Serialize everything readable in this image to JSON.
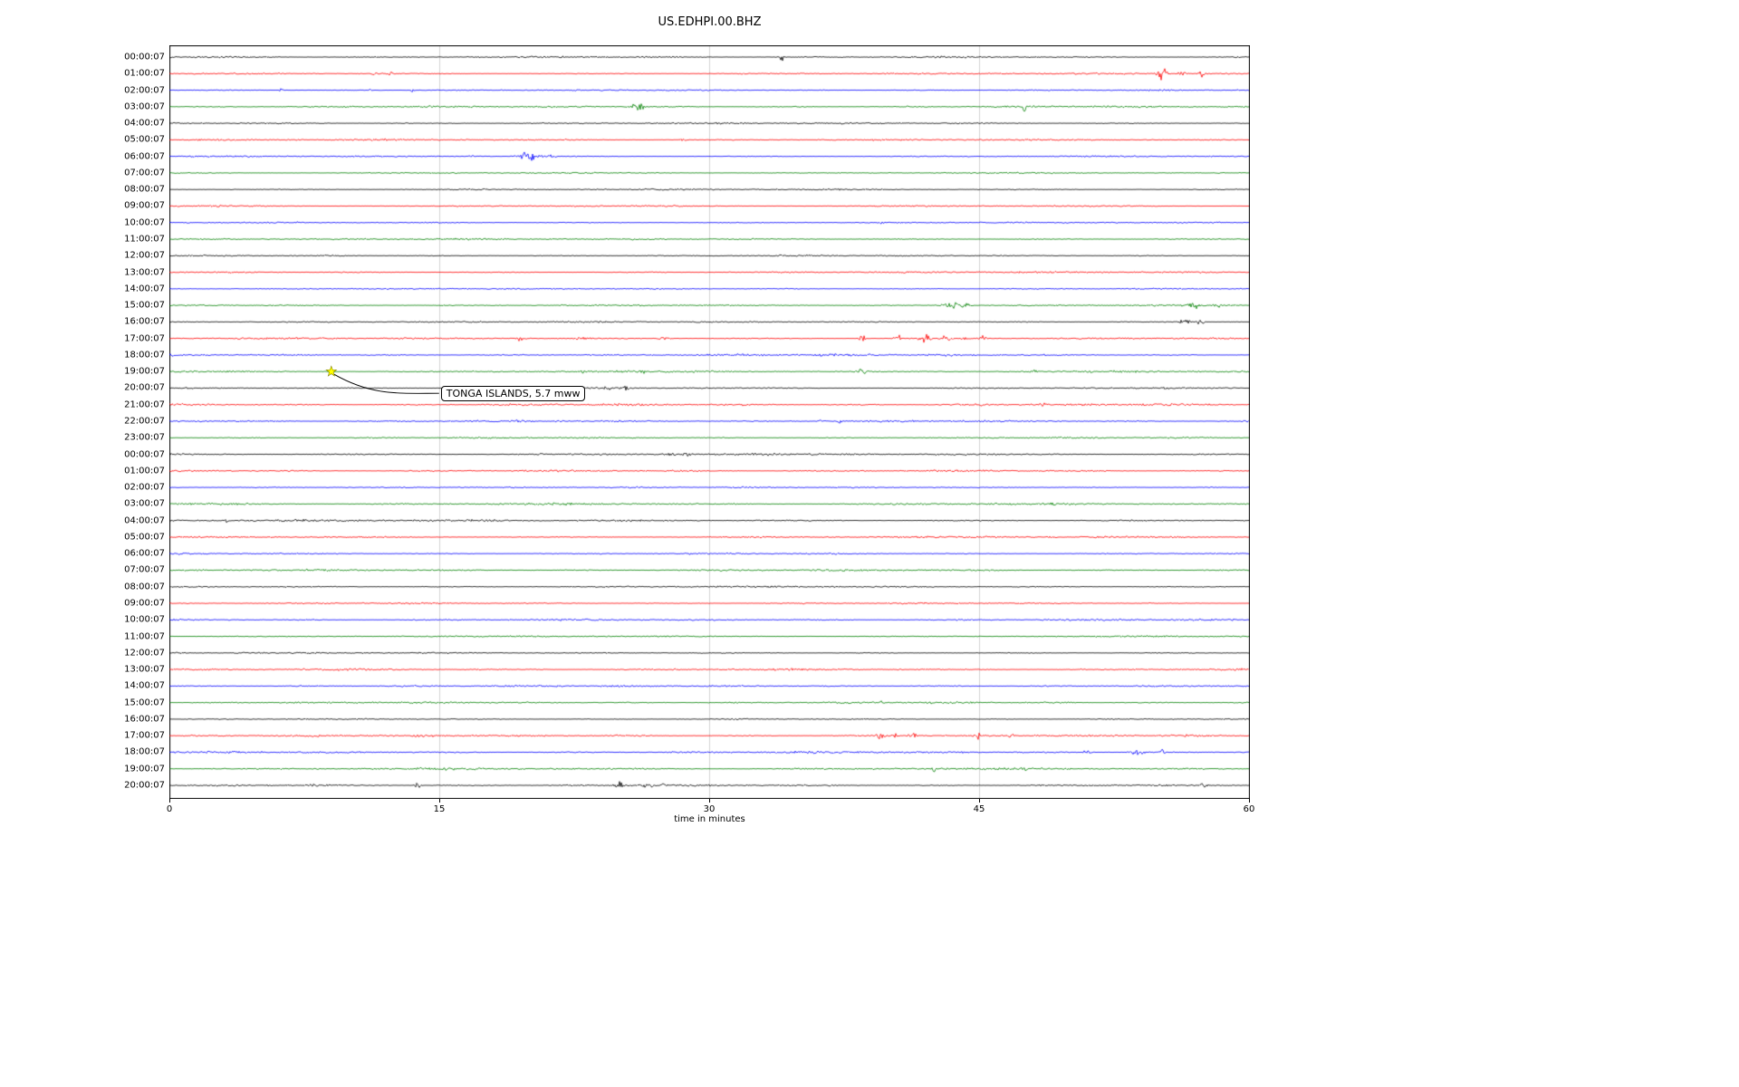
{
  "chart_data": {
    "type": "line",
    "subtype": "helicorder-seismogram",
    "title": "US.EDHPI.00.BHZ",
    "xlabel": "time in minutes",
    "xlim": [
      0,
      60
    ],
    "x_ticks": [
      0,
      15,
      30,
      45,
      60
    ],
    "x_tick_labels": [
      "0",
      "15",
      "30",
      "45",
      "60"
    ],
    "grid_minutes": [
      15,
      30,
      45
    ],
    "grid_color": "#c8c8c8",
    "frame_color": "#000000",
    "trace_color_cycle": [
      "#000000",
      "#ff0000",
      "#0000ff",
      "#008000"
    ],
    "rows": [
      {
        "label": "00:00:07",
        "color": "#000000"
      },
      {
        "label": "01:00:07",
        "color": "#ff0000"
      },
      {
        "label": "02:00:07",
        "color": "#0000ff"
      },
      {
        "label": "03:00:07",
        "color": "#008000"
      },
      {
        "label": "04:00:07",
        "color": "#000000"
      },
      {
        "label": "05:00:07",
        "color": "#ff0000"
      },
      {
        "label": "06:00:07",
        "color": "#0000ff"
      },
      {
        "label": "07:00:07",
        "color": "#008000"
      },
      {
        "label": "08:00:07",
        "color": "#000000"
      },
      {
        "label": "09:00:07",
        "color": "#ff0000"
      },
      {
        "label": "10:00:07",
        "color": "#0000ff"
      },
      {
        "label": "11:00:07",
        "color": "#008000"
      },
      {
        "label": "12:00:07",
        "color": "#000000"
      },
      {
        "label": "13:00:07",
        "color": "#ff0000"
      },
      {
        "label": "14:00:07",
        "color": "#0000ff"
      },
      {
        "label": "15:00:07",
        "color": "#008000"
      },
      {
        "label": "16:00:07",
        "color": "#000000"
      },
      {
        "label": "17:00:07",
        "color": "#ff0000"
      },
      {
        "label": "18:00:07",
        "color": "#0000ff"
      },
      {
        "label": "19:00:07",
        "color": "#008000"
      },
      {
        "label": "20:00:07",
        "color": "#000000"
      },
      {
        "label": "21:00:07",
        "color": "#ff0000"
      },
      {
        "label": "22:00:07",
        "color": "#0000ff"
      },
      {
        "label": "23:00:07",
        "color": "#008000"
      },
      {
        "label": "00:00:07",
        "color": "#000000"
      },
      {
        "label": "01:00:07",
        "color": "#ff0000"
      },
      {
        "label": "02:00:07",
        "color": "#0000ff"
      },
      {
        "label": "03:00:07",
        "color": "#008000"
      },
      {
        "label": "04:00:07",
        "color": "#000000"
      },
      {
        "label": "05:00:07",
        "color": "#ff0000"
      },
      {
        "label": "06:00:07",
        "color": "#0000ff"
      },
      {
        "label": "07:00:07",
        "color": "#008000"
      },
      {
        "label": "08:00:07",
        "color": "#000000"
      },
      {
        "label": "09:00:07",
        "color": "#ff0000"
      },
      {
        "label": "10:00:07",
        "color": "#0000ff"
      },
      {
        "label": "11:00:07",
        "color": "#008000"
      },
      {
        "label": "12:00:07",
        "color": "#000000"
      },
      {
        "label": "13:00:07",
        "color": "#ff0000"
      },
      {
        "label": "14:00:07",
        "color": "#0000ff"
      },
      {
        "label": "15:00:07",
        "color": "#008000"
      },
      {
        "label": "16:00:07",
        "color": "#000000"
      },
      {
        "label": "17:00:07",
        "color": "#ff0000"
      },
      {
        "label": "18:00:07",
        "color": "#0000ff"
      },
      {
        "label": "19:00:07",
        "color": "#008000"
      },
      {
        "label": "20:00:07",
        "color": "#000000"
      }
    ],
    "events": [
      {
        "row": 0,
        "minute": 34.0,
        "amp": 7,
        "w": 0.12
      },
      {
        "row": 0,
        "minute": 59.3,
        "amp": 3.5,
        "w": 0.1
      },
      {
        "row": 1,
        "minute": 11.5,
        "amp": 2.5,
        "w": 0.2
      },
      {
        "row": 1,
        "minute": 12.3,
        "amp": 2.5,
        "w": 0.15
      },
      {
        "row": 1,
        "minute": 55.2,
        "amp": 10,
        "w": 0.25
      },
      {
        "row": 1,
        "minute": 56.3,
        "amp": 5,
        "w": 0.2
      },
      {
        "row": 1,
        "minute": 57.4,
        "amp": 5,
        "w": 0.15
      },
      {
        "row": 2,
        "minute": 6.2,
        "amp": 3,
        "w": 0.08
      },
      {
        "row": 2,
        "minute": 11.2,
        "amp": 4,
        "w": 0.08
      },
      {
        "row": 2,
        "minute": 13.5,
        "amp": 3,
        "w": 0.08
      },
      {
        "row": 3,
        "minute": 26.0,
        "amp": 6,
        "w": 0.4
      },
      {
        "row": 3,
        "minute": 47.5,
        "amp": 13,
        "w": 0.07
      },
      {
        "row": 5,
        "minute": 28.5,
        "amp": 2.5,
        "w": 0.15
      },
      {
        "row": 6,
        "minute": 16.8,
        "amp": 2.5,
        "w": 0.12
      },
      {
        "row": 6,
        "minute": 20.0,
        "amp": 7,
        "w": 0.5
      },
      {
        "row": 6,
        "minute": 21.2,
        "amp": 3,
        "w": 0.2
      },
      {
        "row": 10,
        "minute": 39.5,
        "amp": 2.5,
        "w": 0.15
      },
      {
        "row": 15,
        "minute": 43.5,
        "amp": 5,
        "w": 0.5
      },
      {
        "row": 15,
        "minute": 44.3,
        "amp": 3,
        "w": 0.3
      },
      {
        "row": 15,
        "minute": 57.0,
        "amp": 5,
        "w": 0.3
      },
      {
        "row": 15,
        "minute": 58.3,
        "amp": 2.5,
        "w": 0.2
      },
      {
        "row": 16,
        "minute": 56.5,
        "amp": 6,
        "w": 0.3
      },
      {
        "row": 16,
        "minute": 57.3,
        "amp": 4,
        "w": 0.2
      },
      {
        "row": 16,
        "minute": 59.0,
        "amp": 2.5,
        "w": 0.15
      },
      {
        "row": 17,
        "minute": 19.5,
        "amp": 3.5,
        "w": 0.3
      },
      {
        "row": 17,
        "minute": 23.0,
        "amp": 2.5,
        "w": 0.3
      },
      {
        "row": 17,
        "minute": 27.5,
        "amp": 3,
        "w": 0.3
      },
      {
        "row": 17,
        "minute": 38.5,
        "amp": 7,
        "w": 0.15
      },
      {
        "row": 17,
        "minute": 40.5,
        "amp": 6,
        "w": 0.2
      },
      {
        "row": 17,
        "minute": 42.0,
        "amp": 8,
        "w": 0.25
      },
      {
        "row": 17,
        "minute": 43.2,
        "amp": 7,
        "w": 0.2
      },
      {
        "row": 17,
        "minute": 44.3,
        "amp": 6,
        "w": 0.2
      },
      {
        "row": 17,
        "minute": 45.2,
        "amp": 4,
        "w": 0.2
      },
      {
        "row": 18,
        "minute": 9.5,
        "amp": 4.5,
        "w": 0.07
      },
      {
        "row": 19,
        "minute": 9.0,
        "amp": 3.5,
        "w": 0.15
      },
      {
        "row": 19,
        "minute": 23.0,
        "amp": 2.5,
        "w": 0.15
      },
      {
        "row": 19,
        "minute": 26.3,
        "amp": 3.5,
        "w": 0.12
      },
      {
        "row": 19,
        "minute": 38.5,
        "amp": 3.5,
        "w": 0.25
      },
      {
        "row": 19,
        "minute": 48.0,
        "amp": 3.5,
        "w": 0.25
      },
      {
        "row": 20,
        "minute": 24.3,
        "amp": 4.5,
        "w": 0.3
      },
      {
        "row": 20,
        "minute": 25.3,
        "amp": 4,
        "w": 0.25
      },
      {
        "row": 21,
        "minute": 45.3,
        "amp": 4.5,
        "w": 0.12
      },
      {
        "row": 21,
        "minute": 48.5,
        "amp": 3.5,
        "w": 0.15
      },
      {
        "row": 22,
        "minute": 36.3,
        "amp": 3.5,
        "w": 0.2
      },
      {
        "row": 22,
        "minute": 37.3,
        "amp": 3,
        "w": 0.15
      },
      {
        "row": 24,
        "minute": 27.8,
        "amp": 5,
        "w": 0.3
      },
      {
        "row": 24,
        "minute": 28.7,
        "amp": 3.5,
        "w": 0.2
      },
      {
        "row": 28,
        "minute": 3.2,
        "amp": 3.5,
        "w": 0.08
      },
      {
        "row": 39,
        "minute": 39.5,
        "amp": 2.5,
        "w": 0.12
      },
      {
        "row": 41,
        "minute": 39.5,
        "amp": 4.5,
        "w": 0.25
      },
      {
        "row": 41,
        "minute": 40.3,
        "amp": 4,
        "w": 0.2
      },
      {
        "row": 41,
        "minute": 41.3,
        "amp": 4,
        "w": 0.25
      },
      {
        "row": 41,
        "minute": 45.0,
        "amp": 11,
        "w": 0.06
      },
      {
        "row": 41,
        "minute": 46.8,
        "amp": 2.5,
        "w": 0.2
      },
      {
        "row": 42,
        "minute": 51.0,
        "amp": 3.5,
        "w": 0.2
      },
      {
        "row": 42,
        "minute": 53.8,
        "amp": 5,
        "w": 0.4
      },
      {
        "row": 42,
        "minute": 55.2,
        "amp": 3.5,
        "w": 0.2
      },
      {
        "row": 43,
        "minute": 42.5,
        "amp": 5,
        "w": 0.08
      },
      {
        "row": 43,
        "minute": 47.5,
        "amp": 5,
        "w": 0.08
      },
      {
        "row": 44,
        "minute": 8.0,
        "amp": 2.5,
        "w": 0.2
      },
      {
        "row": 44,
        "minute": 13.8,
        "amp": 4.5,
        "w": 0.15
      },
      {
        "row": 44,
        "minute": 25.0,
        "amp": 4.5,
        "w": 0.4
      },
      {
        "row": 44,
        "minute": 26.5,
        "amp": 4.5,
        "w": 0.3
      },
      {
        "row": 44,
        "minute": 27.5,
        "amp": 3.5,
        "w": 0.2
      },
      {
        "row": 44,
        "minute": 57.5,
        "amp": 2.5,
        "w": 0.2
      }
    ],
    "annotation": {
      "text": "TONGA ISLANDS, 5.7 mww",
      "row_index": 19,
      "row_label": "19:00:07",
      "minute": 9.0,
      "marker": "yellow-star",
      "marker_color": "#ffff00"
    }
  }
}
